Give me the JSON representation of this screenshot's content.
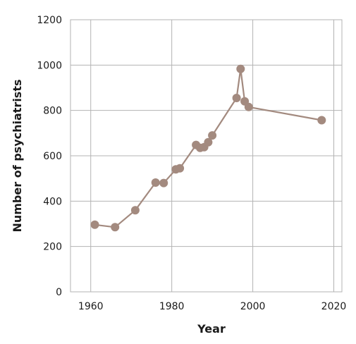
{
  "chart_data": {
    "type": "line",
    "title": "",
    "xlabel": "Year",
    "ylabel": "Number of psychiatrists",
    "xlim": [
      1955,
      2022
    ],
    "ylim": [
      0,
      1200
    ],
    "x_ticks": [
      "1960",
      "1980",
      "2000",
      "2020"
    ],
    "y_ticks": [
      "0",
      "200",
      "400",
      "600",
      "800",
      "1000",
      "1200"
    ],
    "grid": true,
    "legend": "none",
    "color": "#a38a7f",
    "series": [
      {
        "x": [
          1961,
          1966,
          1971,
          1976,
          1978,
          1981,
          1982,
          1986,
          1987,
          1988,
          1989,
          1990,
          1996,
          1997,
          1998,
          1999,
          2017
        ],
        "y": [
          296,
          285,
          360,
          482,
          480,
          540,
          545,
          648,
          635,
          638,
          660,
          690,
          855,
          983,
          840,
          815,
          757
        ]
      }
    ]
  }
}
